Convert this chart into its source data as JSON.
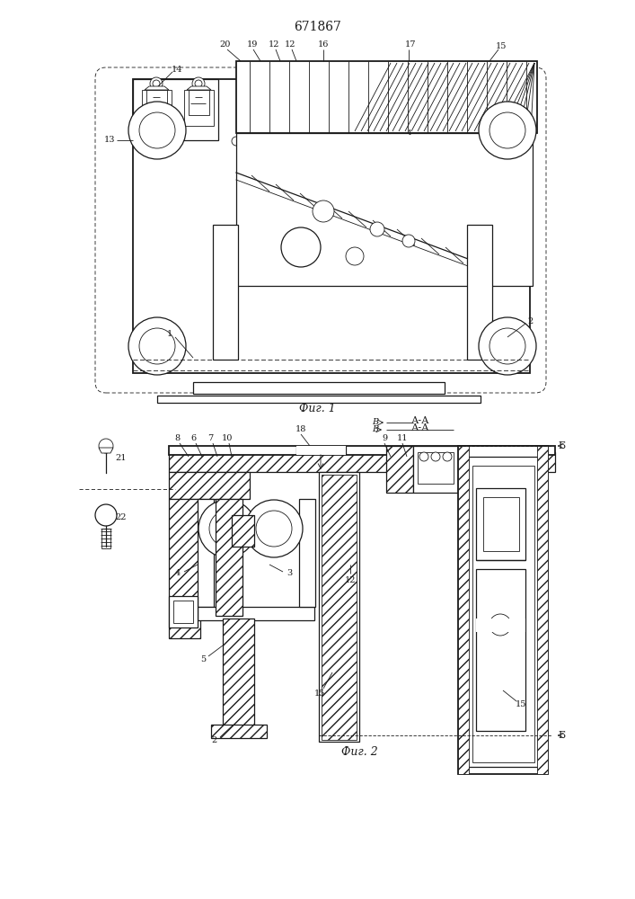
{
  "title": "671867",
  "title_fontsize": 11,
  "fig1_caption": "Фиг. 1",
  "fig2_caption": "Фиг. 2",
  "bg_color": "#ffffff",
  "line_color": "#1a1a1a",
  "fig_width": 7.07,
  "fig_height": 10.0,
  "dpi": 100
}
